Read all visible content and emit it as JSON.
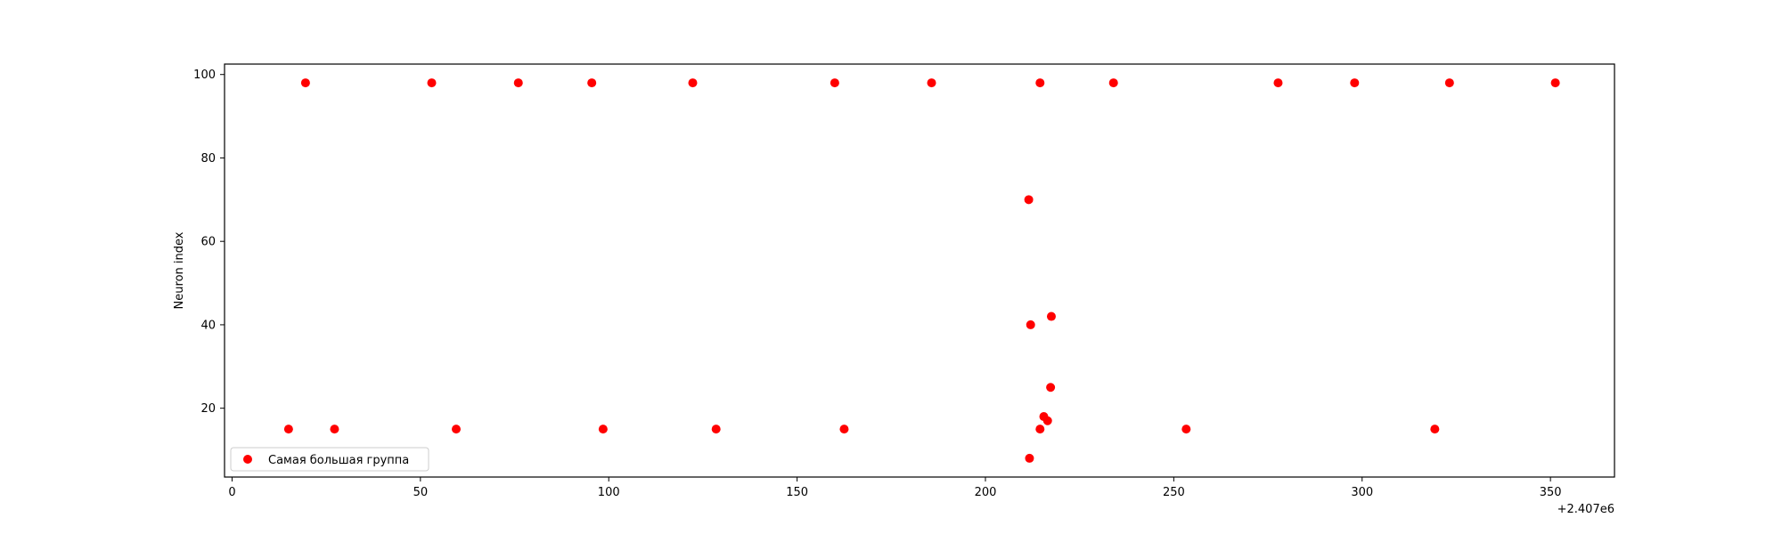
{
  "chart_data": {
    "type": "scatter",
    "title": "",
    "xlabel": "",
    "ylabel": "Neuron index",
    "x_offset_label": "+2.407e6",
    "xlim": [
      -2,
      367
    ],
    "ylim": [
      3.5,
      102.5
    ],
    "xticks": [
      0,
      50,
      100,
      150,
      200,
      250,
      300,
      350
    ],
    "yticks": [
      20,
      40,
      60,
      80,
      100
    ],
    "grid": false,
    "legend_position": "lower-left",
    "series": [
      {
        "name": "Самая большая группа",
        "color": "#ff0000",
        "points": [
          {
            "x": 19.5,
            "y": 98
          },
          {
            "x": 53,
            "y": 98
          },
          {
            "x": 76,
            "y": 98
          },
          {
            "x": 95.5,
            "y": 98
          },
          {
            "x": 122.3,
            "y": 98
          },
          {
            "x": 160,
            "y": 98
          },
          {
            "x": 185.7,
            "y": 98
          },
          {
            "x": 214.5,
            "y": 98
          },
          {
            "x": 234,
            "y": 98
          },
          {
            "x": 277.7,
            "y": 98
          },
          {
            "x": 298,
            "y": 98
          },
          {
            "x": 323.2,
            "y": 98
          },
          {
            "x": 351.3,
            "y": 98
          },
          {
            "x": 211.5,
            "y": 70
          },
          {
            "x": 217.5,
            "y": 42
          },
          {
            "x": 212,
            "y": 40
          },
          {
            "x": 217.3,
            "y": 25
          },
          {
            "x": 215.5,
            "y": 18
          },
          {
            "x": 216.5,
            "y": 17
          },
          {
            "x": 15,
            "y": 15
          },
          {
            "x": 27.2,
            "y": 15
          },
          {
            "x": 59.5,
            "y": 15
          },
          {
            "x": 98.5,
            "y": 15
          },
          {
            "x": 128.5,
            "y": 15
          },
          {
            "x": 162.5,
            "y": 15
          },
          {
            "x": 214.5,
            "y": 15
          },
          {
            "x": 253.3,
            "y": 15
          },
          {
            "x": 319.3,
            "y": 15
          },
          {
            "x": 211.7,
            "y": 8
          }
        ]
      }
    ]
  }
}
